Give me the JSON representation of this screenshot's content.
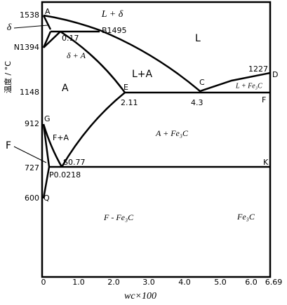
{
  "axes": {
    "y_label": "温度 / °C",
    "x_label": "wc×100",
    "y_ticks": [
      "1538",
      "N1394",
      "1148",
      "912",
      "727",
      "600"
    ],
    "x_ticks": [
      "0",
      "1.0",
      "2.0",
      "3.0",
      "4.0",
      "5.0",
      "6.0",
      "6.69"
    ]
  },
  "labels": {
    "A_top": "A",
    "L_delta": "L + δ",
    "delta": "δ",
    "B": "B1495",
    "J": "0.17",
    "delta_A": "δ + A",
    "L": "L",
    "L_A": "L+A",
    "A_region": "A",
    "E": "E",
    "C": "C",
    "T1227": "1227",
    "D": "D",
    "L_Fe3C": "L + Fe₃C",
    "F_right": "F",
    "E_val": "2.11",
    "C_val": "4.3",
    "G": "G",
    "F_A": "F+A",
    "A_Fe3C": "A + Fe₃C",
    "S": "S0.77",
    "K": "K",
    "P": "P0.0218",
    "Q": "Q",
    "F_left": "F",
    "F_Fe3C": "F - Fe₃C",
    "Fe3C": "Fe₃C"
  }
}
